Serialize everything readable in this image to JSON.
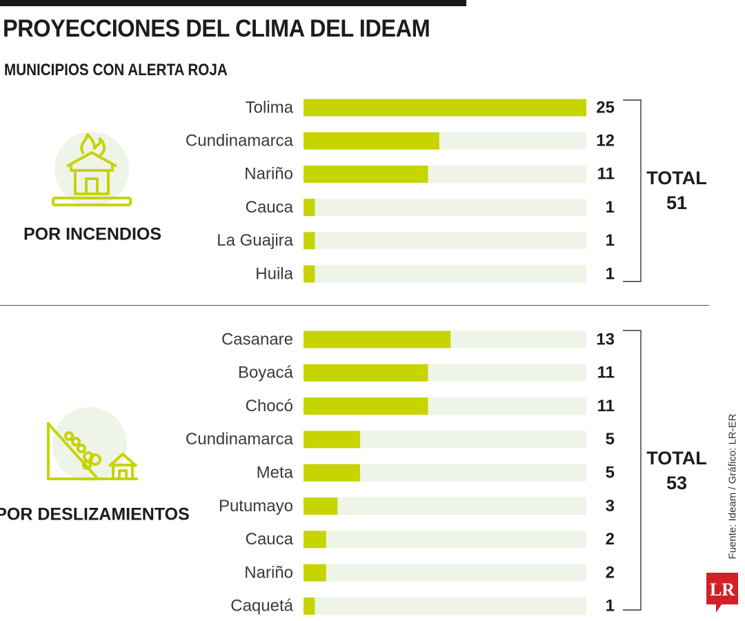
{
  "header": {
    "title": "PROYECCIONES DEL CLIMA DEL IDEAM",
    "subtitle": "MUNICIPIOS CON ALERTA ROJA"
  },
  "colors": {
    "bar": "#c6d400",
    "track": "#eef4e8",
    "icon": "#c6d400",
    "icon_bg": "#eef4e8",
    "logo": "#d32027"
  },
  "chart_data": [
    {
      "type": "bar",
      "orientation": "horizontal",
      "group_label": "POR INCENDIOS",
      "icon": "burning-house-icon",
      "categories": [
        "Tolima",
        "Cundinamarca",
        "Nariño",
        "Cauca",
        "La Guajira",
        "Huila"
      ],
      "values": [
        25,
        12,
        11,
        1,
        1,
        1
      ],
      "value_labels": [
        "25",
        "12",
        "11",
        "1",
        "1",
        "1"
      ],
      "xlim": [
        0,
        25
      ],
      "total_label": "TOTAL",
      "total_value": "51",
      "grid": false
    },
    {
      "type": "bar",
      "orientation": "horizontal",
      "group_label": "POR DESLIZAMIENTOS",
      "icon": "landslide-icon",
      "categories": [
        "Casanare",
        "Boyacá",
        "Chocó",
        "Cundinamarca",
        "Meta",
        "Putumayo",
        "Cauca",
        "Nariño",
        "Caquetá"
      ],
      "values": [
        13,
        11,
        11,
        5,
        5,
        3,
        2,
        2,
        1
      ],
      "value_labels": [
        "13",
        "11",
        "11",
        "5",
        "5",
        "3",
        "2",
        "2",
        "1"
      ],
      "xlim": [
        0,
        25
      ],
      "total_label": "TOTAL",
      "total_value": "53",
      "grid": false
    }
  ],
  "footer": {
    "source": "Fuente: Ideam / Gráfico: LR-ER",
    "logo_text": "LR"
  }
}
